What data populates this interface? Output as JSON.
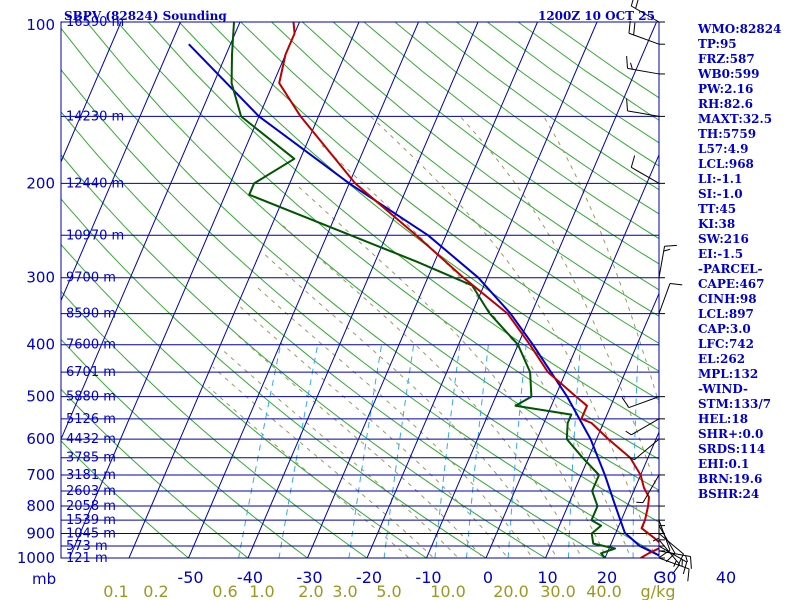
{
  "title_left": "SBPV (82824) Sounding",
  "title_right": "1200Z 10 OCT 25",
  "chart_data": {
    "type": "skew-t",
    "pressure_axis_label": "mb",
    "pressure_levels": [
      100,
      200,
      300,
      400,
      500,
      600,
      700,
      800,
      900,
      1000
    ],
    "height_labels": [
      {
        "p": 100,
        "label": "16590 m"
      },
      {
        "p": 150,
        "label": "14230 m"
      },
      {
        "p": 200,
        "label": "12440 m"
      },
      {
        "p": 250,
        "label": "10970 m"
      },
      {
        "p": 300,
        "label": "9700 m"
      },
      {
        "p": 350,
        "label": "8590 m"
      },
      {
        "p": 400,
        "label": "7600 m"
      },
      {
        "p": 450,
        "label": "6701 m"
      },
      {
        "p": 500,
        "label": "5880 m"
      },
      {
        "p": 550,
        "label": "5126 m"
      },
      {
        "p": 600,
        "label": "4432 m"
      },
      {
        "p": 650,
        "label": "3785 m"
      },
      {
        "p": 700,
        "label": "3181 m"
      },
      {
        "p": 750,
        "label": "2603 m"
      },
      {
        "p": 800,
        "label": "2058 m"
      },
      {
        "p": 850,
        "label": "1539 m"
      },
      {
        "p": 900,
        "label": "1045 m"
      },
      {
        "p": 950,
        "label": "573 m"
      },
      {
        "p": 1000,
        "label": "121 m"
      }
    ],
    "temperature_ticks": [
      -50,
      -40,
      -30,
      -20,
      -10,
      0,
      10,
      20,
      30,
      40
    ],
    "temperature_unit_label": "C",
    "mixing_ratio_labels": [
      "0.1",
      "0.2",
      "0.6",
      "1.0",
      "2.0",
      "3.0",
      "5.0",
      "10.0",
      "20.0",
      "30.0",
      "40.0",
      "g/kg"
    ],
    "temperature_profile": [
      {
        "p": 1000,
        "t": 26
      },
      {
        "p": 980,
        "t": 27
      },
      {
        "p": 950,
        "t": 29
      },
      {
        "p": 920,
        "t": 27
      },
      {
        "p": 880,
        "t": 24
      },
      {
        "p": 850,
        "t": 24
      },
      {
        "p": 800,
        "t": 23.5
      },
      {
        "p": 770,
        "t": 23
      },
      {
        "p": 740,
        "t": 21.5
      },
      {
        "p": 700,
        "t": 20
      },
      {
        "p": 650,
        "t": 17
      },
      {
        "p": 600,
        "t": 12
      },
      {
        "p": 560,
        "t": 8
      },
      {
        "p": 550,
        "t": 6
      },
      {
        "p": 520,
        "t": 6
      },
      {
        "p": 500,
        "t": 3.5
      },
      {
        "p": 450,
        "t": -3
      },
      {
        "p": 400,
        "t": -8
      },
      {
        "p": 350,
        "t": -14
      },
      {
        "p": 300,
        "t": -24
      },
      {
        "p": 250,
        "t": -35
      },
      {
        "p": 200,
        "t": -49
      },
      {
        "p": 150,
        "t": -63
      },
      {
        "p": 130,
        "t": -69
      },
      {
        "p": 115,
        "t": -70
      },
      {
        "p": 105,
        "t": -70
      },
      {
        "p": 100,
        "t": -71
      }
    ],
    "dewpoint_profile": [
      {
        "p": 1000,
        "t": 20
      },
      {
        "p": 980,
        "t": 19
      },
      {
        "p": 960,
        "t": 21
      },
      {
        "p": 940,
        "t": 17
      },
      {
        "p": 900,
        "t": 16
      },
      {
        "p": 870,
        "t": 17
      },
      {
        "p": 850,
        "t": 15
      },
      {
        "p": 800,
        "t": 15
      },
      {
        "p": 750,
        "t": 13
      },
      {
        "p": 700,
        "t": 13
      },
      {
        "p": 650,
        "t": 9
      },
      {
        "p": 600,
        "t": 5
      },
      {
        "p": 560,
        "t": 4
      },
      {
        "p": 540,
        "t": 4
      },
      {
        "p": 520,
        "t": -6
      },
      {
        "p": 500,
        "t": -4
      },
      {
        "p": 450,
        "t": -6
      },
      {
        "p": 400,
        "t": -10
      },
      {
        "p": 350,
        "t": -17
      },
      {
        "p": 310,
        "t": -22
      },
      {
        "p": 280,
        "t": -33
      },
      {
        "p": 250,
        "t": -46
      },
      {
        "p": 210,
        "t": -66
      },
      {
        "p": 200,
        "t": -66
      },
      {
        "p": 180,
        "t": -61
      },
      {
        "p": 150,
        "t": -73
      },
      {
        "p": 130,
        "t": -77
      },
      {
        "p": 115,
        "t": -79
      },
      {
        "p": 100,
        "t": -81
      }
    ],
    "parcel_profile": [
      {
        "p": 1000,
        "t": 30
      },
      {
        "p": 950,
        "t": 25
      },
      {
        "p": 897,
        "t": 21.5
      },
      {
        "p": 800,
        "t": 18
      },
      {
        "p": 700,
        "t": 14
      },
      {
        "p": 600,
        "t": 9
      },
      {
        "p": 500,
        "t": 2
      },
      {
        "p": 400,
        "t": -7.5
      },
      {
        "p": 350,
        "t": -13.5
      },
      {
        "p": 300,
        "t": -21.5
      },
      {
        "p": 250,
        "t": -33
      },
      {
        "p": 200,
        "t": -50
      },
      {
        "p": 150,
        "t": -70
      },
      {
        "p": 110,
        "t": -87
      }
    ],
    "wind_barbs": [
      {
        "p": 1000,
        "dir": 110,
        "spd": 10
      },
      {
        "p": 970,
        "dir": 100,
        "spd": 15
      },
      {
        "p": 950,
        "dir": 120,
        "spd": 15
      },
      {
        "p": 925,
        "dir": 140,
        "spd": 15
      },
      {
        "p": 900,
        "dir": 130,
        "spd": 10
      },
      {
        "p": 870,
        "dir": 150,
        "spd": 10
      },
      {
        "p": 850,
        "dir": 160,
        "spd": 10
      },
      {
        "p": 800,
        "dir": 180,
        "spd": 5
      },
      {
        "p": 700,
        "dir": 210,
        "spd": 5
      },
      {
        "p": 600,
        "dir": 230,
        "spd": 5
      },
      {
        "p": 550,
        "dir": 240,
        "spd": 5
      },
      {
        "p": 500,
        "dir": 250,
        "spd": 10
      },
      {
        "p": 350,
        "dir": 20,
        "spd": 10
      },
      {
        "p": 300,
        "dir": 10,
        "spd": 15
      },
      {
        "p": 200,
        "dir": 300,
        "spd": 10
      },
      {
        "p": 150,
        "dir": 280,
        "spd": 10
      },
      {
        "p": 125,
        "dir": 280,
        "spd": 15
      },
      {
        "p": 110,
        "dir": 290,
        "spd": 20
      },
      {
        "p": 100,
        "dir": 300,
        "spd": 20
      }
    ],
    "line_colors": {
      "temperature": "#bb0000",
      "dewpoint": "#005500",
      "parcel": "#0000cc",
      "isobar": "#0000aa",
      "isotherm": "#0000aa",
      "dry_adiabat": "#33aa33",
      "moist_adiabat": "#999966",
      "mixing_ratio": "#33aaee",
      "wind_barb": "#000000"
    }
  },
  "indices": [
    "WMO:82824",
    "TP:95",
    "FRZ:587",
    "WB0:599",
    "PW:2.16",
    "RH:82.6",
    "MAXT:32.5",
    "TH:5759",
    "L57:4.9",
    "LCL:968",
    "LI:-1.1",
    "SI:-1.0",
    "TT:45",
    "KI:38",
    "SW:216",
    "EI:-1.5",
    "-PARCEL-",
    "CAPE:467",
    "CINH:98",
    "LCL:897",
    "CAP:3.0",
    "LFC:742",
    "EL:262",
    "MPL:132",
    "-WIND-",
    "STM:133/7",
    "HEL:18",
    "SHR+:0.0",
    "SRDS:114",
    "EHI:0.1",
    "BRN:19.6",
    "BSHR:24"
  ]
}
